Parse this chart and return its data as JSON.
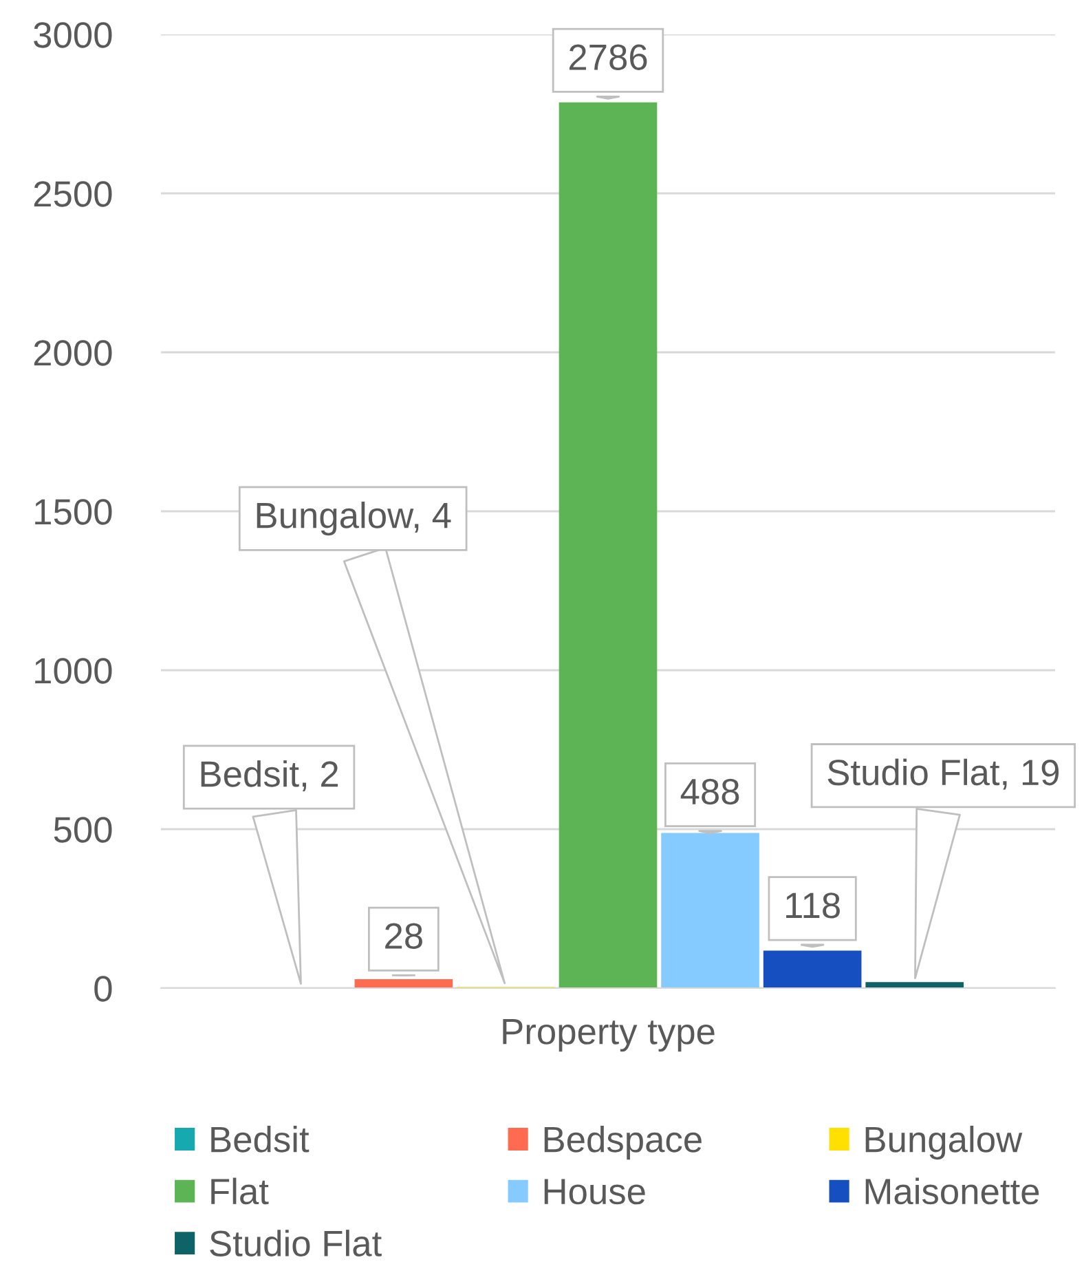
{
  "chart_data": {
    "type": "bar",
    "xlabel": "Property type",
    "categories": [
      null
    ],
    "series": [
      {
        "name": "Bedsit",
        "color": "#17a9b0",
        "values": [
          2
        ],
        "value_labels": [
          "Bedsit, 2"
        ]
      },
      {
        "name": "Bedspace",
        "color": "#ff6b50",
        "values": [
          28
        ],
        "value_labels": [
          "28"
        ]
      },
      {
        "name": "Bungalow",
        "color": "#ffe000",
        "values": [
          4
        ],
        "value_labels": [
          "Bungalow, 4"
        ]
      },
      {
        "name": "Flat",
        "color": "#5cb455",
        "values": [
          2786
        ],
        "value_labels": [
          "2786"
        ]
      },
      {
        "name": "House",
        "color": "#85cbff",
        "values": [
          488
        ],
        "value_labels": [
          "488"
        ]
      },
      {
        "name": "Maisonette",
        "color": "#1650c0",
        "values": [
          118
        ],
        "value_labels": [
          "118"
        ]
      },
      {
        "name": "Studio Flat",
        "color": "#0e6368",
        "values": [
          19
        ],
        "value_labels": [
          "Studio Flat, 19"
        ]
      }
    ],
    "ylim": [
      0,
      3000
    ],
    "yticks": [
      0,
      500,
      1000,
      1500,
      2000,
      2500,
      3000
    ],
    "grid": "y",
    "legend": "bottom"
  }
}
